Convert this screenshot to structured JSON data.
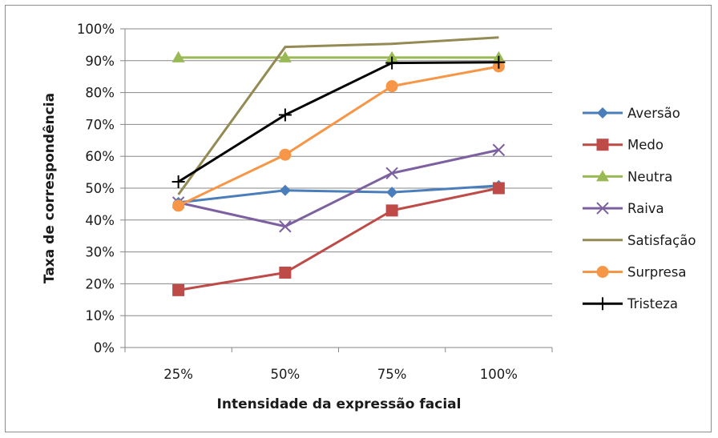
{
  "chart_data": {
    "type": "line",
    "title": "",
    "xlabel": "Intensidade da expressão facial",
    "ylabel": "Taxa de correspondência",
    "categories": [
      "25%",
      "50%",
      "75%",
      "100%"
    ],
    "ylim": [
      0,
      100
    ],
    "yticks": [
      "0%",
      "10%",
      "20%",
      "30%",
      "40%",
      "50%",
      "60%",
      "70%",
      "80%",
      "90%",
      "100%"
    ],
    "grid": "horizontal",
    "legend_position": "right",
    "series": [
      {
        "name": "Aversão",
        "color": "#4a7ebb",
        "marker": "diamond",
        "values": [
          45.5,
          49.3,
          48.7,
          50.8
        ]
      },
      {
        "name": "Medo",
        "color": "#be4b48",
        "marker": "square",
        "values": [
          18,
          23.5,
          43,
          50
        ]
      },
      {
        "name": "Neutra",
        "color": "#98b954",
        "marker": "triangle",
        "values": [
          91,
          91,
          91,
          91
        ]
      },
      {
        "name": "Raiva",
        "color": "#7d60a0",
        "marker": "x",
        "values": [
          45.5,
          38,
          54.7,
          62
        ]
      },
      {
        "name": "Satisfação",
        "color": "#948a54",
        "marker": "none",
        "values": [
          48,
          94.3,
          95.3,
          97.3
        ]
      },
      {
        "name": "Surpresa",
        "color": "#f79646",
        "marker": "circle",
        "values": [
          44.5,
          60.5,
          82,
          88.2
        ]
      },
      {
        "name": "Tristeza",
        "color": "#000000",
        "marker": "plus",
        "values": [
          52,
          73,
          89.3,
          89.5
        ]
      }
    ]
  }
}
